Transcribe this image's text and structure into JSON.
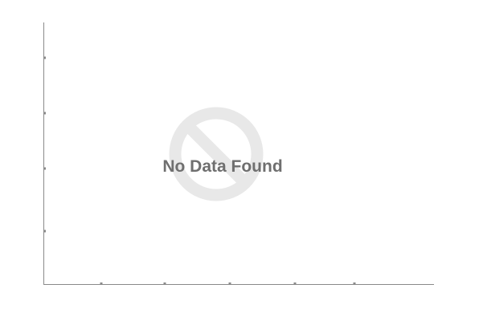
{
  "chart_data": {
    "type": "line",
    "title": "",
    "xlabel": "",
    "ylabel": "",
    "series": [],
    "grid": false,
    "empty_state": {
      "message": "No Data Found",
      "icon": "no-entry-icon",
      "icon_color": "#e8e8e8",
      "text_color": "#6f6f6f"
    },
    "axis_color": "#8a8a8a"
  }
}
